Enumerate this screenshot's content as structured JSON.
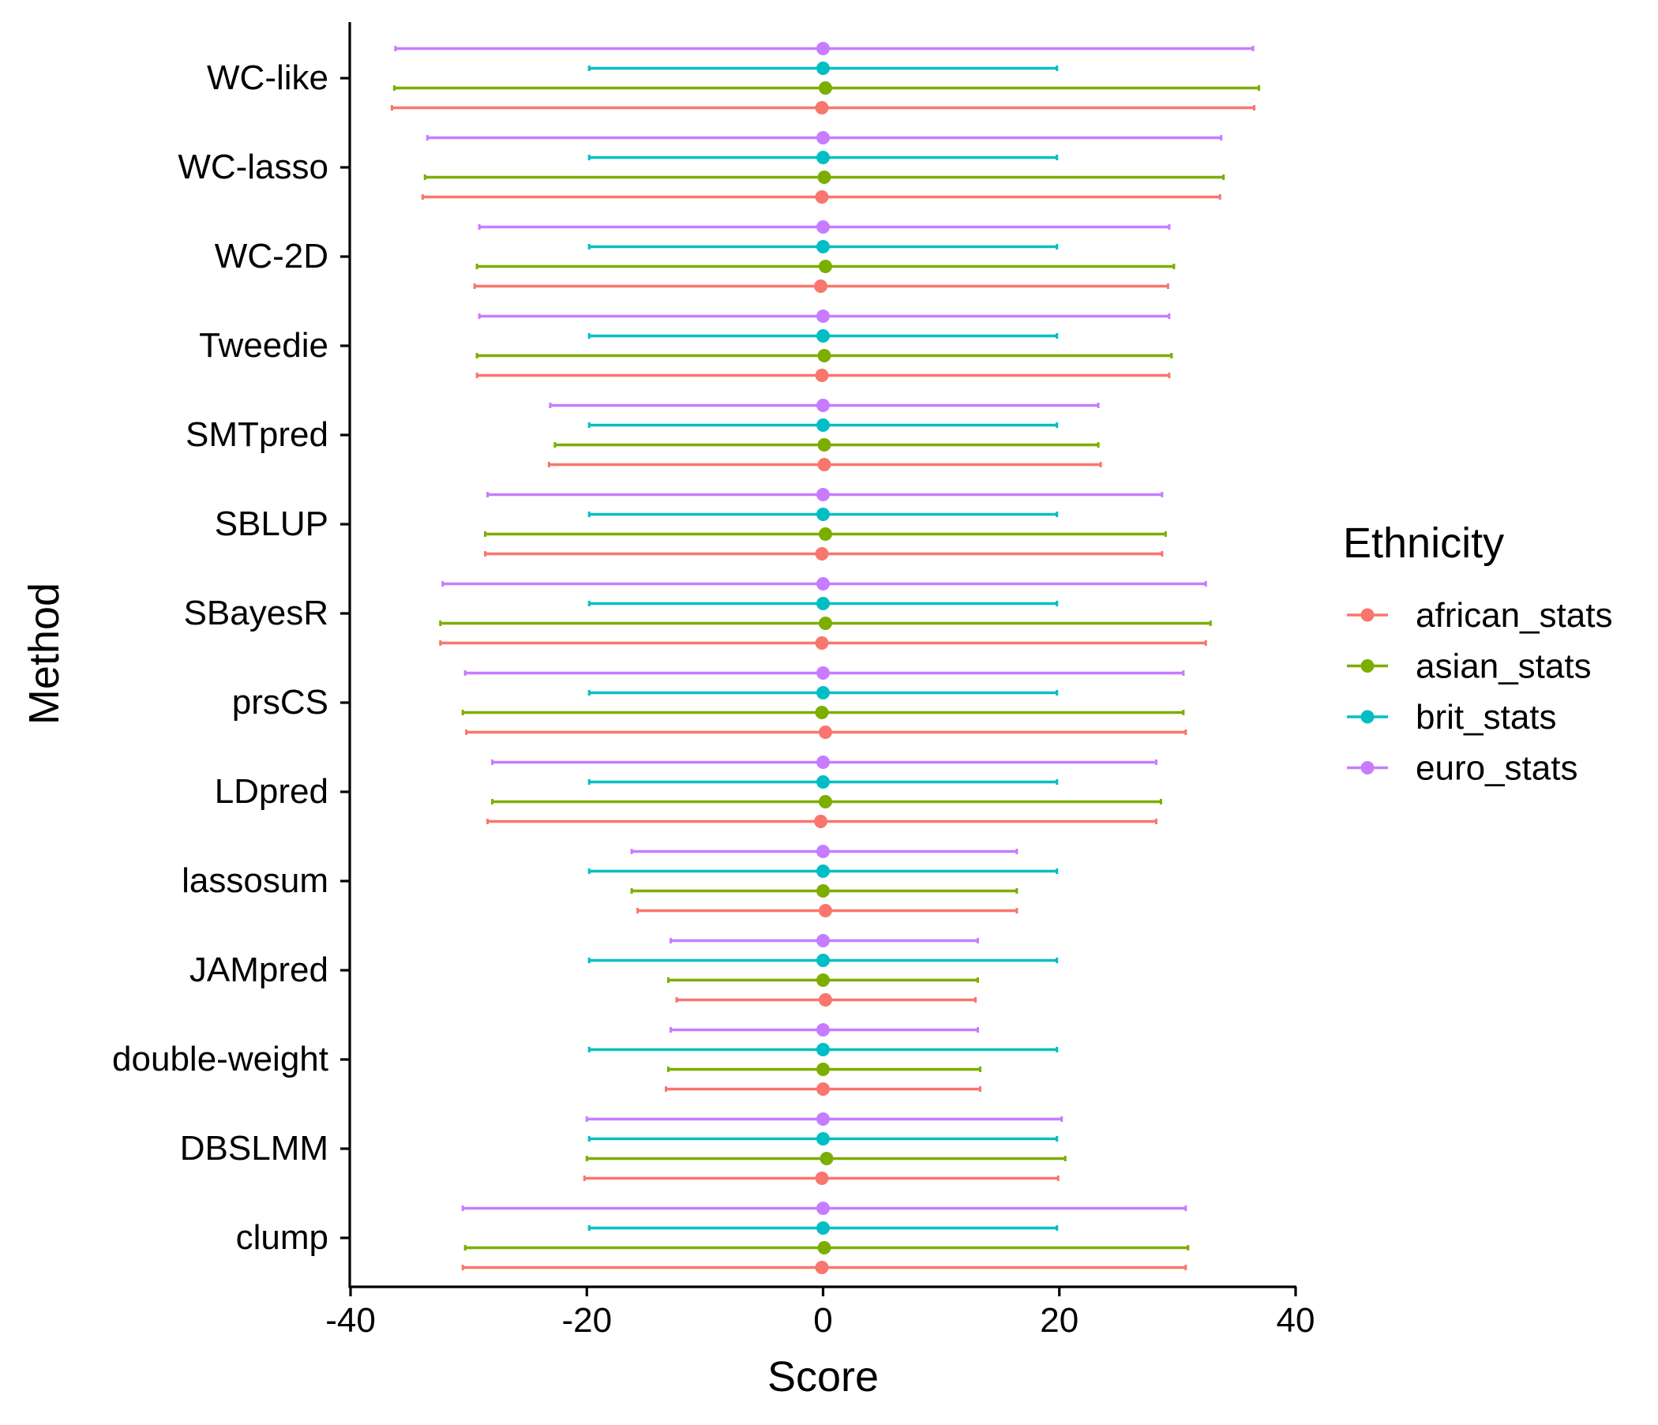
{
  "chart_data": {
    "type": "errorbar",
    "title": "",
    "xlabel": "Score",
    "ylabel": "Method",
    "xlim": [
      -40,
      40
    ],
    "xticks": [
      -40,
      -20,
      0,
      20,
      40
    ],
    "grid": false,
    "legend_position": "right",
    "legend_title": "Ethnicity",
    "categories": [
      "WC-like",
      "WC-lasso",
      "WC-2D",
      "Tweedie",
      "SMTpred",
      "SBLUP",
      "SBayesR",
      "prsCS",
      "LDpred",
      "lassosum",
      "JAMpred",
      "double-weight",
      "DBSLMM",
      "clump"
    ],
    "series": [
      {
        "name": "african_stats",
        "color": "#F8766D",
        "points": [
          {
            "x": -0.1,
            "lo": -36.5,
            "hi": 36.5
          },
          {
            "x": -0.1,
            "lo": -33.9,
            "hi": 33.6
          },
          {
            "x": -0.2,
            "lo": -29.5,
            "hi": 29.2
          },
          {
            "x": -0.1,
            "lo": -29.3,
            "hi": 29.3
          },
          {
            "x": 0.1,
            "lo": -23.2,
            "hi": 23.5
          },
          {
            "x": -0.1,
            "lo": -28.6,
            "hi": 28.7
          },
          {
            "x": -0.1,
            "lo": -32.4,
            "hi": 32.4
          },
          {
            "x": 0.2,
            "lo": -30.2,
            "hi": 30.7
          },
          {
            "x": -0.2,
            "lo": -28.4,
            "hi": 28.2
          },
          {
            "x": 0.2,
            "lo": -15.7,
            "hi": 16.4
          },
          {
            "x": 0.2,
            "lo": -12.4,
            "hi": 12.9
          },
          {
            "x": 0.0,
            "lo": -13.3,
            "hi": 13.3
          },
          {
            "x": -0.1,
            "lo": -20.2,
            "hi": 19.9
          },
          {
            "x": -0.1,
            "lo": -30.5,
            "hi": 30.7
          }
        ]
      },
      {
        "name": "asian_stats",
        "color": "#7CAE00",
        "points": [
          {
            "x": 0.2,
            "lo": -36.3,
            "hi": 36.9
          },
          {
            "x": 0.1,
            "lo": -33.7,
            "hi": 33.9
          },
          {
            "x": 0.2,
            "lo": -29.3,
            "hi": 29.7
          },
          {
            "x": 0.1,
            "lo": -29.3,
            "hi": 29.5
          },
          {
            "x": 0.1,
            "lo": -22.7,
            "hi": 23.3
          },
          {
            "x": 0.2,
            "lo": -28.6,
            "hi": 29.0
          },
          {
            "x": 0.2,
            "lo": -32.4,
            "hi": 32.8
          },
          {
            "x": -0.1,
            "lo": -30.5,
            "hi": 30.5
          },
          {
            "x": 0.2,
            "lo": -28.0,
            "hi": 28.6
          },
          {
            "x": 0.0,
            "lo": -16.2,
            "hi": 16.4
          },
          {
            "x": 0.0,
            "lo": -13.1,
            "hi": 13.1
          },
          {
            "x": 0.0,
            "lo": -13.1,
            "hi": 13.3
          },
          {
            "x": 0.3,
            "lo": -20.0,
            "hi": 20.5
          },
          {
            "x": 0.1,
            "lo": -30.3,
            "hi": 30.9
          }
        ]
      },
      {
        "name": "brit_stats",
        "color": "#00BFC4",
        "points": [
          {
            "x": 0.0,
            "lo": -19.8,
            "hi": 19.8
          },
          {
            "x": 0.0,
            "lo": -19.8,
            "hi": 19.8
          },
          {
            "x": 0.0,
            "lo": -19.8,
            "hi": 19.8
          },
          {
            "x": 0.0,
            "lo": -19.8,
            "hi": 19.8
          },
          {
            "x": 0.0,
            "lo": -19.8,
            "hi": 19.8
          },
          {
            "x": 0.0,
            "lo": -19.8,
            "hi": 19.8
          },
          {
            "x": 0.0,
            "lo": -19.8,
            "hi": 19.8
          },
          {
            "x": 0.0,
            "lo": -19.8,
            "hi": 19.8
          },
          {
            "x": 0.0,
            "lo": -19.8,
            "hi": 19.8
          },
          {
            "x": 0.0,
            "lo": -19.8,
            "hi": 19.8
          },
          {
            "x": 0.0,
            "lo": -19.8,
            "hi": 19.8
          },
          {
            "x": 0.0,
            "lo": -19.8,
            "hi": 19.8
          },
          {
            "x": 0.0,
            "lo": -19.8,
            "hi": 19.8
          },
          {
            "x": 0.0,
            "lo": -19.8,
            "hi": 19.8
          }
        ]
      },
      {
        "name": "euro_stats",
        "color": "#C77CFF",
        "points": [
          {
            "x": 0.0,
            "lo": -36.2,
            "hi": 36.4
          },
          {
            "x": 0.0,
            "lo": -33.5,
            "hi": 33.7
          },
          {
            "x": 0.0,
            "lo": -29.1,
            "hi": 29.3
          },
          {
            "x": 0.0,
            "lo": -29.1,
            "hi": 29.3
          },
          {
            "x": 0.0,
            "lo": -23.1,
            "hi": 23.3
          },
          {
            "x": 0.0,
            "lo": -28.4,
            "hi": 28.7
          },
          {
            "x": 0.0,
            "lo": -32.2,
            "hi": 32.4
          },
          {
            "x": 0.0,
            "lo": -30.3,
            "hi": 30.5
          },
          {
            "x": 0.0,
            "lo": -28.0,
            "hi": 28.2
          },
          {
            "x": 0.0,
            "lo": -16.2,
            "hi": 16.4
          },
          {
            "x": 0.0,
            "lo": -12.9,
            "hi": 13.1
          },
          {
            "x": 0.0,
            "lo": -12.9,
            "hi": 13.1
          },
          {
            "x": 0.0,
            "lo": -20.0,
            "hi": 20.2
          },
          {
            "x": 0.0,
            "lo": -30.5,
            "hi": 30.7
          }
        ]
      }
    ]
  }
}
